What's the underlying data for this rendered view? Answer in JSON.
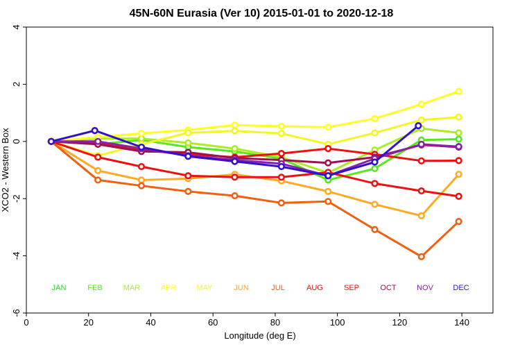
{
  "chart_data": {
    "type": "line",
    "title": "45N-60N Eurasia (Ver 10)   2015-01-01 to 2020-12-18",
    "xlabel": "Longitude (deg E)",
    "ylabel": "XCO2 - Western Box",
    "xlim": [
      0,
      150
    ],
    "ylim": [
      -6,
      4
    ],
    "xticks": [
      "0",
      "20",
      "40",
      "60",
      "80",
      "100",
      "120",
      "140"
    ],
    "xtick_values": [
      0,
      20,
      40,
      60,
      80,
      100,
      120,
      140
    ],
    "yticks": [
      "-6",
      "-4",
      "-2",
      "0",
      "2",
      "4"
    ],
    "ytick_values": [
      -6,
      -4,
      -2,
      0,
      2,
      4
    ],
    "series": [
      {
        "name": "JAN",
        "color": "#22e022",
        "x": [
          8
        ],
        "y": [
          0
        ]
      },
      {
        "name": "FEB",
        "color": "#55e81a",
        "x": [
          8,
          23,
          37,
          52,
          67,
          82,
          97,
          112,
          127,
          139
        ],
        "y": [
          0,
          -0.1,
          0.05,
          -0.2,
          -0.35,
          -0.6,
          -1.35,
          -0.95,
          0.05,
          0.08
        ]
      },
      {
        "name": "MAR",
        "color": "#aaee22",
        "x": [
          8,
          23,
          37,
          52,
          67,
          82,
          97,
          112,
          127,
          139
        ],
        "y": [
          0,
          0.1,
          0.1,
          -0.05,
          -0.25,
          -0.55,
          -1.1,
          -0.3,
          0.45,
          0.3
        ]
      },
      {
        "name": "APR",
        "color": "#ffff22",
        "x": [
          8,
          23,
          37,
          52,
          67,
          82,
          97,
          112,
          127,
          139
        ],
        "y": [
          0,
          0.15,
          0.28,
          0.4,
          0.57,
          0.53,
          0.5,
          0.8,
          1.3,
          1.75
        ]
      },
      {
        "name": "MAY",
        "color": "#f5f522",
        "x": [
          8,
          23,
          37,
          52,
          67,
          82,
          97,
          112,
          127,
          139
        ],
        "y": [
          0,
          -0.5,
          -0.1,
          0.3,
          0.37,
          0.28,
          -0.1,
          0.3,
          0.75,
          0.85
        ]
      },
      {
        "name": "JUN",
        "color": "#ffaa22",
        "x": [
          8,
          23,
          37,
          52,
          67,
          82,
          97,
          112,
          127,
          139
        ],
        "y": [
          0,
          -1.02,
          -1.35,
          -1.3,
          -1.15,
          -1.38,
          -1.75,
          -2.2,
          -2.6,
          -1.15
        ]
      },
      {
        "name": "JUL",
        "color": "#f06010",
        "x": [
          8,
          23,
          37,
          52,
          67,
          82,
          97,
          112,
          127,
          139
        ],
        "y": [
          0,
          -1.35,
          -1.55,
          -1.75,
          -1.9,
          -2.15,
          -2.1,
          -3.08,
          -4.03,
          -2.8
        ]
      },
      {
        "name": "AUG",
        "color": "#ee1010",
        "x": [
          8,
          23,
          37,
          52,
          67,
          82,
          97,
          112,
          127,
          139
        ],
        "y": [
          0,
          -0.55,
          -0.88,
          -1.2,
          -1.25,
          -1.25,
          -1.08,
          -1.47,
          -1.73,
          -1.92
        ]
      },
      {
        "name": "SEP",
        "color": "#ee1010",
        "x": [
          8,
          23,
          37,
          52,
          67,
          82,
          97,
          112,
          127,
          139
        ],
        "y": [
          0,
          -0.05,
          -0.3,
          -0.45,
          -0.55,
          -0.42,
          -0.25,
          -0.45,
          -0.68,
          -0.67
        ]
      },
      {
        "name": "OCT",
        "color": "#a01050",
        "x": [
          8,
          23,
          37,
          52,
          67,
          82,
          97,
          112,
          127,
          139
        ],
        "y": [
          0,
          -0.1,
          -0.35,
          -0.38,
          -0.58,
          -0.65,
          -0.75,
          -0.55,
          -0.12,
          -0.2
        ]
      },
      {
        "name": "NOV",
        "color": "#8822aa",
        "x": [
          8,
          23,
          37,
          52,
          67,
          82,
          97,
          112,
          127,
          139
        ],
        "y": [
          0,
          0,
          -0.25,
          -0.5,
          -0.65,
          -0.78,
          -1.2,
          -0.6,
          -0.1,
          -0.18
        ]
      },
      {
        "name": "DEC",
        "color": "#3311cc",
        "x": [
          8,
          22,
          37,
          52,
          67,
          82,
          97,
          112,
          126
        ],
        "y": [
          0,
          0.38,
          -0.2,
          -0.52,
          -0.7,
          -0.88,
          -1.2,
          -0.72,
          0.55
        ]
      }
    ],
    "legend": {
      "placement": "bottom-inside",
      "entries": [
        {
          "label": "JAN",
          "color": "#22dd22"
        },
        {
          "label": "FEB",
          "color": "#55e81a"
        },
        {
          "label": "MAR",
          "color": "#aaee22"
        },
        {
          "label": "APR",
          "color": "#ffff22"
        },
        {
          "label": "MAY",
          "color": "#f5f522"
        },
        {
          "label": "JUN",
          "color": "#ffaa22"
        },
        {
          "label": "JUL",
          "color": "#f06010"
        },
        {
          "label": "AUG",
          "color": "#ee1010"
        },
        {
          "label": "SEP",
          "color": "#ee1010"
        },
        {
          "label": "OCT",
          "color": "#a01050"
        },
        {
          "label": "NOV",
          "color": "#8822aa"
        },
        {
          "label": "DEC",
          "color": "#3311cc"
        }
      ]
    },
    "legend_x_positions": [
      8,
      23,
      37,
      52,
      67,
      82,
      97,
      112,
      127,
      139
    ]
  }
}
